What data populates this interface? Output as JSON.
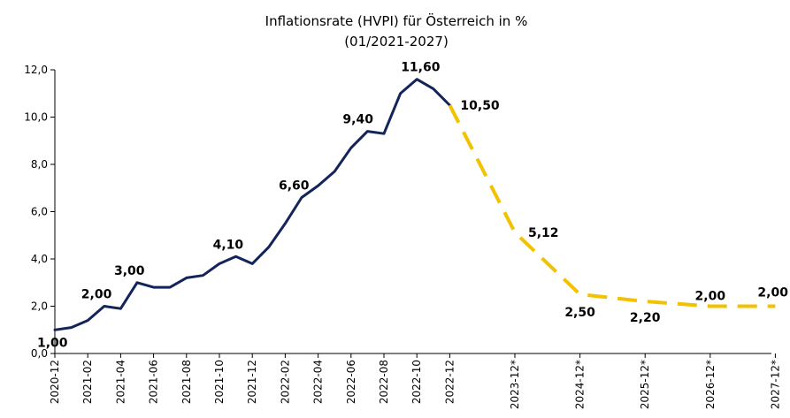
{
  "chart_data": {
    "type": "line",
    "title": "Inflationsrate (HVPI) für Österreich in %",
    "subtitle": "(01/2021-2027)",
    "xlabel": "",
    "ylabel": "",
    "ylim": [
      0,
      12
    ],
    "yticks": [
      "0,0",
      "2,0",
      "4,0",
      "6,0",
      "8,0",
      "10,0",
      "12,0"
    ],
    "xticks": [
      "2020-12",
      "2021-02",
      "2021-04",
      "2021-06",
      "2021-08",
      "2021-10",
      "2021-12",
      "2022-02",
      "2022-04",
      "2022-06",
      "2022-08",
      "2022-10",
      "2022-12",
      "2023-12*",
      "2024-12*",
      "2025-12*",
      "2026-12*",
      "2027-12*"
    ],
    "grid": false,
    "legend": "none",
    "series": [
      {
        "style": "solid",
        "color": "#12245a",
        "x": [
          "2020-12",
          "2021-01",
          "2021-02",
          "2021-03",
          "2021-04",
          "2021-05",
          "2021-06",
          "2021-07",
          "2021-08",
          "2021-09",
          "2021-10",
          "2021-11",
          "2021-12",
          "2022-01",
          "2022-02",
          "2022-03",
          "2022-04",
          "2022-05",
          "2022-06",
          "2022-07",
          "2022-08",
          "2022-09",
          "2022-10",
          "2022-11",
          "2022-12"
        ],
        "values": [
          1.0,
          1.1,
          1.4,
          2.0,
          1.9,
          3.0,
          2.8,
          2.8,
          3.2,
          3.3,
          3.8,
          4.1,
          3.8,
          4.5,
          5.5,
          6.6,
          7.1,
          7.7,
          8.7,
          9.4,
          9.3,
          11.0,
          11.6,
          11.2,
          10.5
        ]
      },
      {
        "style": "dashed",
        "color": "#f2c200",
        "x": [
          "2022-12",
          "2023-12*",
          "2024-12*",
          "2025-12*",
          "2026-12*",
          "2027-12*"
        ],
        "values": [
          10.5,
          5.12,
          2.5,
          2.2,
          2.0,
          2.0
        ]
      }
    ],
    "data_labels": [
      {
        "x": "2020-12",
        "value": 1.0,
        "text": "1,00"
      },
      {
        "x": "2021-03",
        "value": 2.0,
        "text": "2,00"
      },
      {
        "x": "2021-05",
        "value": 3.0,
        "text": "3,00"
      },
      {
        "x": "2021-11",
        "value": 4.1,
        "text": "4,10"
      },
      {
        "x": "2022-03",
        "value": 6.6,
        "text": "6,60"
      },
      {
        "x": "2022-07",
        "value": 9.4,
        "text": "9,40"
      },
      {
        "x": "2022-10",
        "value": 11.6,
        "text": "11,60"
      },
      {
        "x": "2022-12",
        "value": 10.5,
        "text": "10,50"
      },
      {
        "x": "2023-12*",
        "value": 5.12,
        "text": "5,12"
      },
      {
        "x": "2024-12*",
        "value": 2.5,
        "text": "2,50"
      },
      {
        "x": "2025-12*",
        "value": 2.2,
        "text": "2,20"
      },
      {
        "x": "2026-12*",
        "value": 2.0,
        "text": "2,00"
      },
      {
        "x": "2027-12*",
        "value": 2.0,
        "text": "2,00"
      }
    ]
  }
}
